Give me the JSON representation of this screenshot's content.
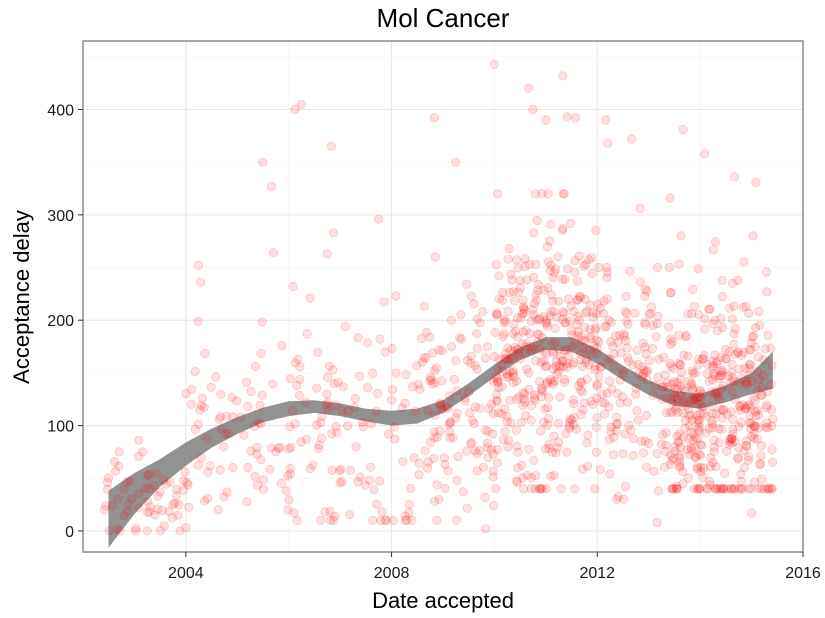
{
  "chart_data": {
    "type": "scatter",
    "title": "Mol Cancer",
    "xlabel": "Date accepted",
    "ylabel": "Acceptance delay",
    "xlim": [
      "2002-01-01",
      "2016-01-01"
    ],
    "ylim": [
      -20,
      465
    ],
    "x_ticks": [
      "2004",
      "2008",
      "2012",
      "2016"
    ],
    "y_ticks": [
      0,
      100,
      200,
      300,
      400
    ],
    "grid": true,
    "legend": "none",
    "point_color": "#ff0000",
    "point_alpha": 0.12,
    "smooth_band_color": "#7f7f7f",
    "density": [
      {
        "start": "2002-06-01",
        "end": "2004-01-01",
        "count": 55,
        "lo": 0,
        "hi": 90,
        "mode": 35
      },
      {
        "start": "2004-01-01",
        "end": "2006-01-01",
        "count": 75,
        "lo": 20,
        "hi": 200,
        "mode": 90
      },
      {
        "start": "2006-01-01",
        "end": "2008-06-01",
        "count": 110,
        "lo": 10,
        "hi": 270,
        "mode": 90
      },
      {
        "start": "2008-06-01",
        "end": "2010-01-01",
        "count": 120,
        "lo": 10,
        "hi": 260,
        "mode": 110
      },
      {
        "start": "2010-01-01",
        "end": "2012-01-01",
        "count": 360,
        "lo": 40,
        "hi": 320,
        "mode": 170
      },
      {
        "start": "2012-01-01",
        "end": "2013-06-01",
        "count": 140,
        "lo": 30,
        "hi": 250,
        "mode": 140
      },
      {
        "start": "2013-06-01",
        "end": "2015-06-01",
        "count": 380,
        "lo": 40,
        "hi": 280,
        "mode": 120
      }
    ],
    "outliers": [
      {
        "x": "2006-02-15",
        "y": 400
      },
      {
        "x": "2006-04-01",
        "y": 405
      },
      {
        "x": "2005-07-01",
        "y": 350
      },
      {
        "x": "2005-09-01",
        "y": 327
      },
      {
        "x": "2006-11-01",
        "y": 365
      },
      {
        "x": "2004-04-01",
        "y": 252
      },
      {
        "x": "2004-04-15",
        "y": 236
      },
      {
        "x": "2008-11-01",
        "y": 392
      },
      {
        "x": "2009-04-01",
        "y": 350
      },
      {
        "x": "2010-01-01",
        "y": 443
      },
      {
        "x": "2010-09-01",
        "y": 420
      },
      {
        "x": "2011-05-01",
        "y": 432
      },
      {
        "x": "2010-10-01",
        "y": 400
      },
      {
        "x": "2011-01-01",
        "y": 390
      },
      {
        "x": "2011-06-01",
        "y": 393
      },
      {
        "x": "2011-08-01",
        "y": 392
      },
      {
        "x": "2012-03-01",
        "y": 390
      },
      {
        "x": "2012-03-15",
        "y": 368
      },
      {
        "x": "2012-09-01",
        "y": 372
      },
      {
        "x": "2013-09-01",
        "y": 381
      },
      {
        "x": "2014-02-01",
        "y": 358
      },
      {
        "x": "2013-06-01",
        "y": 316
      },
      {
        "x": "2014-09-01",
        "y": 336
      },
      {
        "x": "2015-02-01",
        "y": 331
      },
      {
        "x": "2012-11-01",
        "y": 306
      },
      {
        "x": "2009-11-01",
        "y": 2
      },
      {
        "x": "2013-03-01",
        "y": 8
      },
      {
        "x": "2015-01-01",
        "y": 17
      },
      {
        "x": "2002-09-01",
        "y": 2
      },
      {
        "x": "2003-08-01",
        "y": 5
      },
      {
        "x": "2004-01-01",
        "y": 3
      },
      {
        "x": "2006-06-01",
        "y": 221
      },
      {
        "x": "2006-02-01",
        "y": 232
      },
      {
        "x": "2006-10-01",
        "y": 263
      },
      {
        "x": "2006-11-15",
        "y": 283
      },
      {
        "x": "2007-10-01",
        "y": 296
      },
      {
        "x": "2005-09-15",
        "y": 264
      },
      {
        "x": "2008-02-01",
        "y": 223
      },
      {
        "x": "2003-02-01",
        "y": 86
      },
      {
        "x": "2002-09-15",
        "y": 75
      },
      {
        "x": "2003-03-01",
        "y": 75
      },
      {
        "x": "2002-06-01",
        "y": 20
      }
    ],
    "smooth": {
      "x": [
        "2002-07-01",
        "2003-01-01",
        "2003-07-01",
        "2004-01-01",
        "2004-07-01",
        "2005-01-01",
        "2005-07-01",
        "2006-01-01",
        "2006-07-01",
        "2007-01-01",
        "2007-07-01",
        "2008-01-01",
        "2008-07-01",
        "2009-01-01",
        "2009-07-01",
        "2010-01-01",
        "2010-07-01",
        "2011-01-01",
        "2011-07-01",
        "2012-01-01",
        "2012-07-01",
        "2013-01-01",
        "2013-07-01",
        "2014-01-01",
        "2014-07-01",
        "2015-01-01",
        "2015-06-01"
      ],
      "y": [
        12,
        35,
        55,
        73,
        88,
        100,
        110,
        116,
        118,
        115,
        110,
        107,
        109,
        118,
        134,
        152,
        168,
        178,
        177,
        166,
        150,
        136,
        126,
        123,
        130,
        140,
        150
      ],
      "lower": [
        -16,
        16,
        42,
        62,
        79,
        92,
        103,
        109,
        112,
        109,
        104,
        100,
        102,
        112,
        128,
        146,
        162,
        172,
        170,
        159,
        143,
        129,
        119,
        116,
        122,
        130,
        135
      ],
      "upper": [
        38,
        55,
        68,
        84,
        97,
        108,
        117,
        123,
        124,
        121,
        116,
        114,
        116,
        124,
        140,
        158,
        174,
        184,
        184,
        173,
        157,
        143,
        133,
        130,
        138,
        150,
        170
      ]
    }
  }
}
